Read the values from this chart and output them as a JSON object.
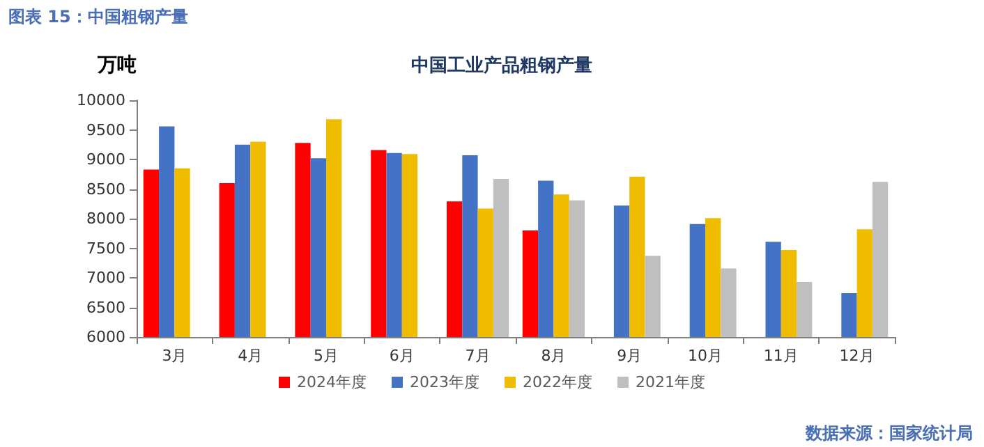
{
  "chart_data": {
    "type": "bar",
    "title": "中国工业产品粗钢产量",
    "ylabel": "万吨",
    "annotations": [
      "图表 15：中国粗钢产量",
      "数据来源：国家统计局"
    ],
    "categories": [
      "3月",
      "4月",
      "5月",
      "6月",
      "7月",
      "8月",
      "9月",
      "10月",
      "11月",
      "12月"
    ],
    "series": [
      {
        "name": "2024年度",
        "color": "#ff0000",
        "values": [
          8830,
          8600,
          9280,
          9160,
          8290,
          7800,
          null,
          null,
          null,
          null
        ]
      },
      {
        "name": "2023年度",
        "color": "#4472c4",
        "values": [
          9560,
          9250,
          9020,
          9110,
          9070,
          8640,
          8220,
          7910,
          7610,
          6740
        ]
      },
      {
        "name": "2022年度",
        "color": "#f0bc00",
        "values": [
          8850,
          9300,
          9680,
          9090,
          8170,
          8410,
          8710,
          8010,
          7470,
          7820
        ]
      },
      {
        "name": "2021年度",
        "color": "#bfbfbf",
        "values": [
          null,
          null,
          null,
          null,
          8670,
          8310,
          7370,
          7160,
          6930,
          8620
        ]
      }
    ],
    "ylim": [
      6000,
      10000
    ],
    "yticks": [
      6000,
      6500,
      7000,
      7500,
      8000,
      8500,
      9000,
      9500,
      10000
    ],
    "grid": false,
    "legend": "bottom"
  }
}
